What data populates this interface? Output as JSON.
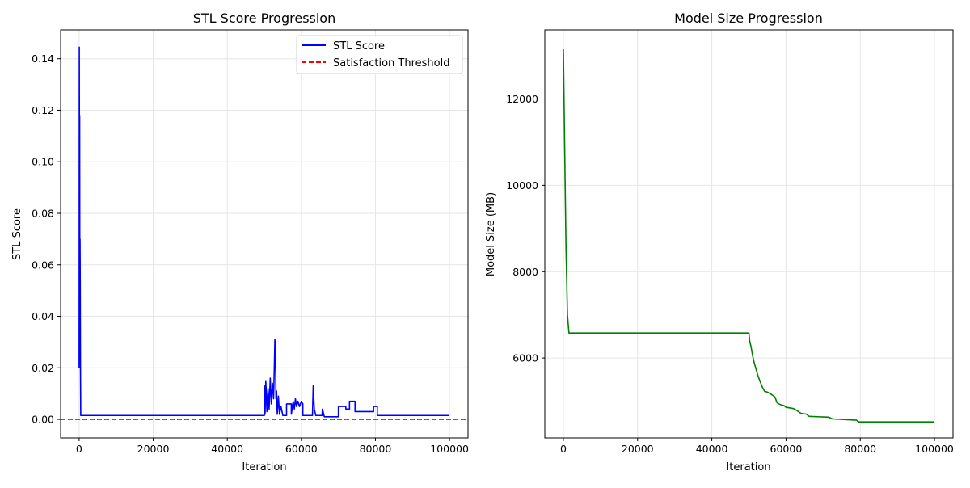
{
  "chart_data": [
    {
      "type": "line",
      "title": "STL Score Progression",
      "xlabel": "Iteration",
      "ylabel": "STL Score",
      "xlim": [
        -5000,
        105000
      ],
      "ylim": [
        -0.0072,
        0.1512
      ],
      "xticks": [
        0,
        20000,
        40000,
        60000,
        80000,
        100000
      ],
      "yticks": [
        0.0,
        0.02,
        0.04,
        0.06,
        0.08,
        0.1,
        0.12,
        0.14
      ],
      "ytick_decimals": 2,
      "grid": true,
      "legend_position": "upper-right",
      "series": [
        {
          "name": "STL Score",
          "color": "#0000ff",
          "style": "solid",
          "points": [
            [
              0,
              0.02
            ],
            [
              40,
              0.1445
            ],
            [
              90,
              0.095
            ],
            [
              140,
              0.118
            ],
            [
              190,
              0.04
            ],
            [
              240,
              0.07
            ],
            [
              300,
              0.052
            ],
            [
              360,
              0.02
            ],
            [
              430,
              0.0015
            ],
            [
              700,
              0.0015
            ],
            [
              50000,
              0.0015
            ],
            [
              50000,
              0.013
            ],
            [
              50200,
              0.002
            ],
            [
              50400,
              0.015
            ],
            [
              50700,
              0.003
            ],
            [
              51000,
              0.012
            ],
            [
              51300,
              0.004
            ],
            [
              51600,
              0.016
            ],
            [
              51900,
              0.006
            ],
            [
              52200,
              0.014
            ],
            [
              52500,
              0.008
            ],
            [
              52700,
              0.02
            ],
            [
              52850,
              0.031
            ],
            [
              53000,
              0.027
            ],
            [
              53150,
              0.008
            ],
            [
              53300,
              0.011
            ],
            [
              53500,
              0.002
            ],
            [
              53800,
              0.009
            ],
            [
              54100,
              0.002
            ],
            [
              54500,
              0.005
            ],
            [
              55000,
              0.0015
            ],
            [
              56000,
              0.0015
            ],
            [
              56000,
              0.006
            ],
            [
              57300,
              0.006
            ],
            [
              57300,
              0.002
            ],
            [
              57800,
              0.007
            ],
            [
              58100,
              0.004
            ],
            [
              58400,
              0.008
            ],
            [
              58700,
              0.005
            ],
            [
              59100,
              0.007
            ],
            [
              59500,
              0.005
            ],
            [
              60000,
              0.007
            ],
            [
              60400,
              0.006
            ],
            [
              60400,
              0.0015
            ],
            [
              63000,
              0.0015
            ],
            [
              63200,
              0.013
            ],
            [
              63500,
              0.004
            ],
            [
              63900,
              0.0015
            ],
            [
              65600,
              0.0015
            ],
            [
              65700,
              0.004
            ],
            [
              66200,
              0.001
            ],
            [
              70000,
              0.001
            ],
            [
              70000,
              0.005
            ],
            [
              72000,
              0.005
            ],
            [
              72000,
              0.004
            ],
            [
              73000,
              0.004
            ],
            [
              73000,
              0.007
            ],
            [
              74500,
              0.007
            ],
            [
              74500,
              0.003
            ],
            [
              79500,
              0.003
            ],
            [
              79500,
              0.005
            ],
            [
              80500,
              0.005
            ],
            [
              80500,
              0.0015
            ],
            [
              100000,
              0.0015
            ]
          ]
        }
      ],
      "threshold": {
        "name": "Satisfaction Threshold",
        "value": 0.0,
        "color": "#ff0000",
        "style": "dashed"
      }
    },
    {
      "type": "line",
      "title": "Model Size Progression",
      "xlabel": "Iteration",
      "ylabel": "Model Size (MB)",
      "xlim": [
        -5000,
        105000
      ],
      "ylim": [
        4150,
        13600
      ],
      "xticks": [
        0,
        20000,
        40000,
        60000,
        80000,
        100000
      ],
      "yticks": [
        6000,
        8000,
        10000,
        12000
      ],
      "ytick_decimals": 0,
      "grid": true,
      "series": [
        {
          "color": "#008000",
          "style": "solid",
          "points": [
            [
              0,
              13150
            ],
            [
              300,
              11200
            ],
            [
              700,
              8600
            ],
            [
              1100,
              7000
            ],
            [
              1500,
              6580
            ],
            [
              50000,
              6580
            ],
            [
              50200,
              6400
            ],
            [
              50600,
              6250
            ],
            [
              51000,
              6050
            ],
            [
              51400,
              5900
            ],
            [
              51800,
              5780
            ],
            [
              52400,
              5600
            ],
            [
              53000,
              5460
            ],
            [
              53600,
              5330
            ],
            [
              54200,
              5230
            ],
            [
              55000,
              5210
            ],
            [
              56000,
              5160
            ],
            [
              57000,
              5100
            ],
            [
              57600,
              4960
            ],
            [
              58500,
              4920
            ],
            [
              59400,
              4900
            ],
            [
              60000,
              4860
            ],
            [
              62000,
              4830
            ],
            [
              63000,
              4780
            ],
            [
              64000,
              4720
            ],
            [
              65500,
              4700
            ],
            [
              66200,
              4650
            ],
            [
              71500,
              4630
            ],
            [
              72500,
              4590
            ],
            [
              79000,
              4560
            ],
            [
              79600,
              4520
            ],
            [
              100000,
              4520
            ]
          ]
        }
      ]
    }
  ]
}
